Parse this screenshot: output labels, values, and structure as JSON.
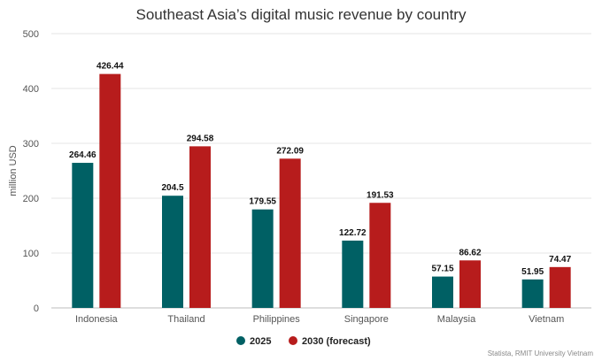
{
  "chart_data": {
    "type": "bar",
    "title": "Southeast Asia’s digital music revenue by country",
    "xlabel": "",
    "ylabel": "million USD",
    "ylim": [
      0,
      500
    ],
    "yticks": [
      "0",
      "100",
      "200",
      "300",
      "400",
      "500"
    ],
    "grid": true,
    "legend_position": "bottom",
    "categories": [
      "Indonesia",
      "Thailand",
      "Philippines",
      "Singapore",
      "Malaysia",
      "Vietnam"
    ],
    "series": [
      {
        "name": "2025",
        "color": "#006064",
        "values": [
          264.46,
          204.5,
          179.55,
          122.72,
          57.15,
          51.95
        ],
        "labels": [
          "264.46",
          "204.5",
          "179.55",
          "122.72",
          "57.15",
          "51.95"
        ]
      },
      {
        "name": "2030 (forecast)",
        "color": "#b71c1c",
        "values": [
          426.44,
          294.58,
          272.09,
          191.53,
          86.62,
          74.47
        ],
        "labels": [
          "426.44",
          "294.58",
          "272.09",
          "191.53",
          "86.62",
          "74.47"
        ]
      }
    ],
    "source": "Statista, RMIT University Vietnam"
  }
}
